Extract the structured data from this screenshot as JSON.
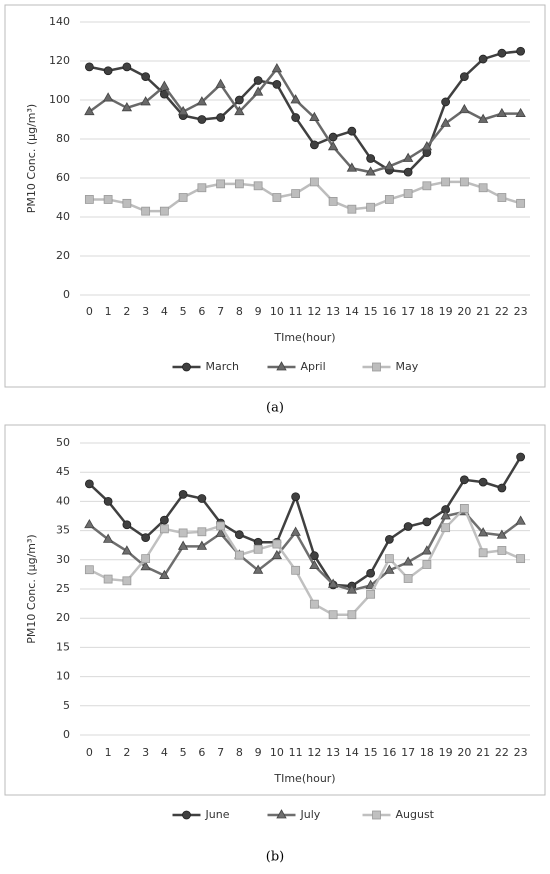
{
  "chart_data": [
    {
      "type": "line",
      "caption": "(a)",
      "ylabel": "PM10 Conc. (μg/m³)",
      "xlabel": "TIme(hour)",
      "categories": [
        "0",
        "1",
        "2",
        "3",
        "4",
        "5",
        "6",
        "7",
        "8",
        "9",
        "10",
        "11",
        "12",
        "13",
        "14",
        "15",
        "16",
        "17",
        "18",
        "19",
        "20",
        "21",
        "22",
        "23"
      ],
      "ylim": [
        0,
        140
      ],
      "yticks": [
        0,
        20,
        40,
        60,
        80,
        100,
        120,
        140
      ],
      "grid": true,
      "legend": "bottom",
      "series": [
        {
          "name": "March",
          "color": "#404040",
          "marker": "circle",
          "values": [
            117,
            115,
            117,
            112,
            103,
            92,
            90,
            91,
            100,
            110,
            108,
            91,
            77,
            81,
            84,
            70,
            64,
            63,
            73,
            99,
            112,
            121,
            124,
            125
          ]
        },
        {
          "name": "April",
          "color": "#696969",
          "marker": "triangle",
          "values": [
            94,
            101,
            96,
            99,
            107,
            94,
            99,
            108,
            94,
            104,
            116,
            100,
            91,
            76,
            65,
            63,
            66,
            70,
            76,
            88,
            95,
            90,
            93,
            93
          ]
        },
        {
          "name": "May",
          "color": "#bdbdbd",
          "marker": "square",
          "values": [
            49,
            49,
            47,
            43,
            43,
            50,
            55,
            57,
            57,
            56,
            50,
            52,
            58,
            48,
            44,
            45,
            49,
            52,
            56,
            58,
            58,
            55,
            50,
            47
          ]
        }
      ]
    },
    {
      "type": "line",
      "caption": "(b)",
      "ylabel": "PM10 Conc. (μg/m³)",
      "xlabel": "TIme(hour)",
      "categories": [
        "0",
        "1",
        "2",
        "3",
        "4",
        "5",
        "6",
        "7",
        "8",
        "9",
        "10",
        "11",
        "12",
        "13",
        "14",
        "15",
        "16",
        "17",
        "18",
        "19",
        "20",
        "21",
        "22",
        "23"
      ],
      "ylim": [
        0,
        50
      ],
      "yticks": [
        0,
        5,
        10,
        15,
        20,
        25,
        30,
        35,
        40,
        45,
        50
      ],
      "grid": true,
      "legend": "bottom",
      "series": [
        {
          "name": "June",
          "color": "#404040",
          "marker": "circle",
          "values": [
            43,
            40,
            36,
            33.8,
            36.8,
            41.2,
            40.5,
            36.3,
            34.3,
            33,
            33,
            40.8,
            30.7,
            25.7,
            25.5,
            27.7,
            33.5,
            35.7,
            36.5,
            38.6,
            43.7,
            43.3,
            42.3,
            47.6
          ]
        },
        {
          "name": "July",
          "color": "#6e6e6e",
          "marker": "triangle",
          "values": [
            36,
            33.5,
            31.5,
            28.8,
            27.3,
            32.3,
            32.3,
            34.5,
            30.8,
            28.2,
            30.7,
            34.7,
            29,
            25.8,
            24.8,
            25.6,
            28.2,
            29.6,
            31.5,
            37.5,
            38.2,
            34.6,
            34.2,
            36.6
          ]
        },
        {
          "name": "August",
          "color": "#c0c0c0",
          "marker": "square",
          "values": [
            28.3,
            26.7,
            26.4,
            30.2,
            35.3,
            34.6,
            34.8,
            35.8,
            30.8,
            31.8,
            32.7,
            28.2,
            22.4,
            20.6,
            20.6,
            24.1,
            30.2,
            26.8,
            29.2,
            35.5,
            38.8,
            31.2,
            31.6,
            30.2
          ]
        }
      ]
    }
  ]
}
